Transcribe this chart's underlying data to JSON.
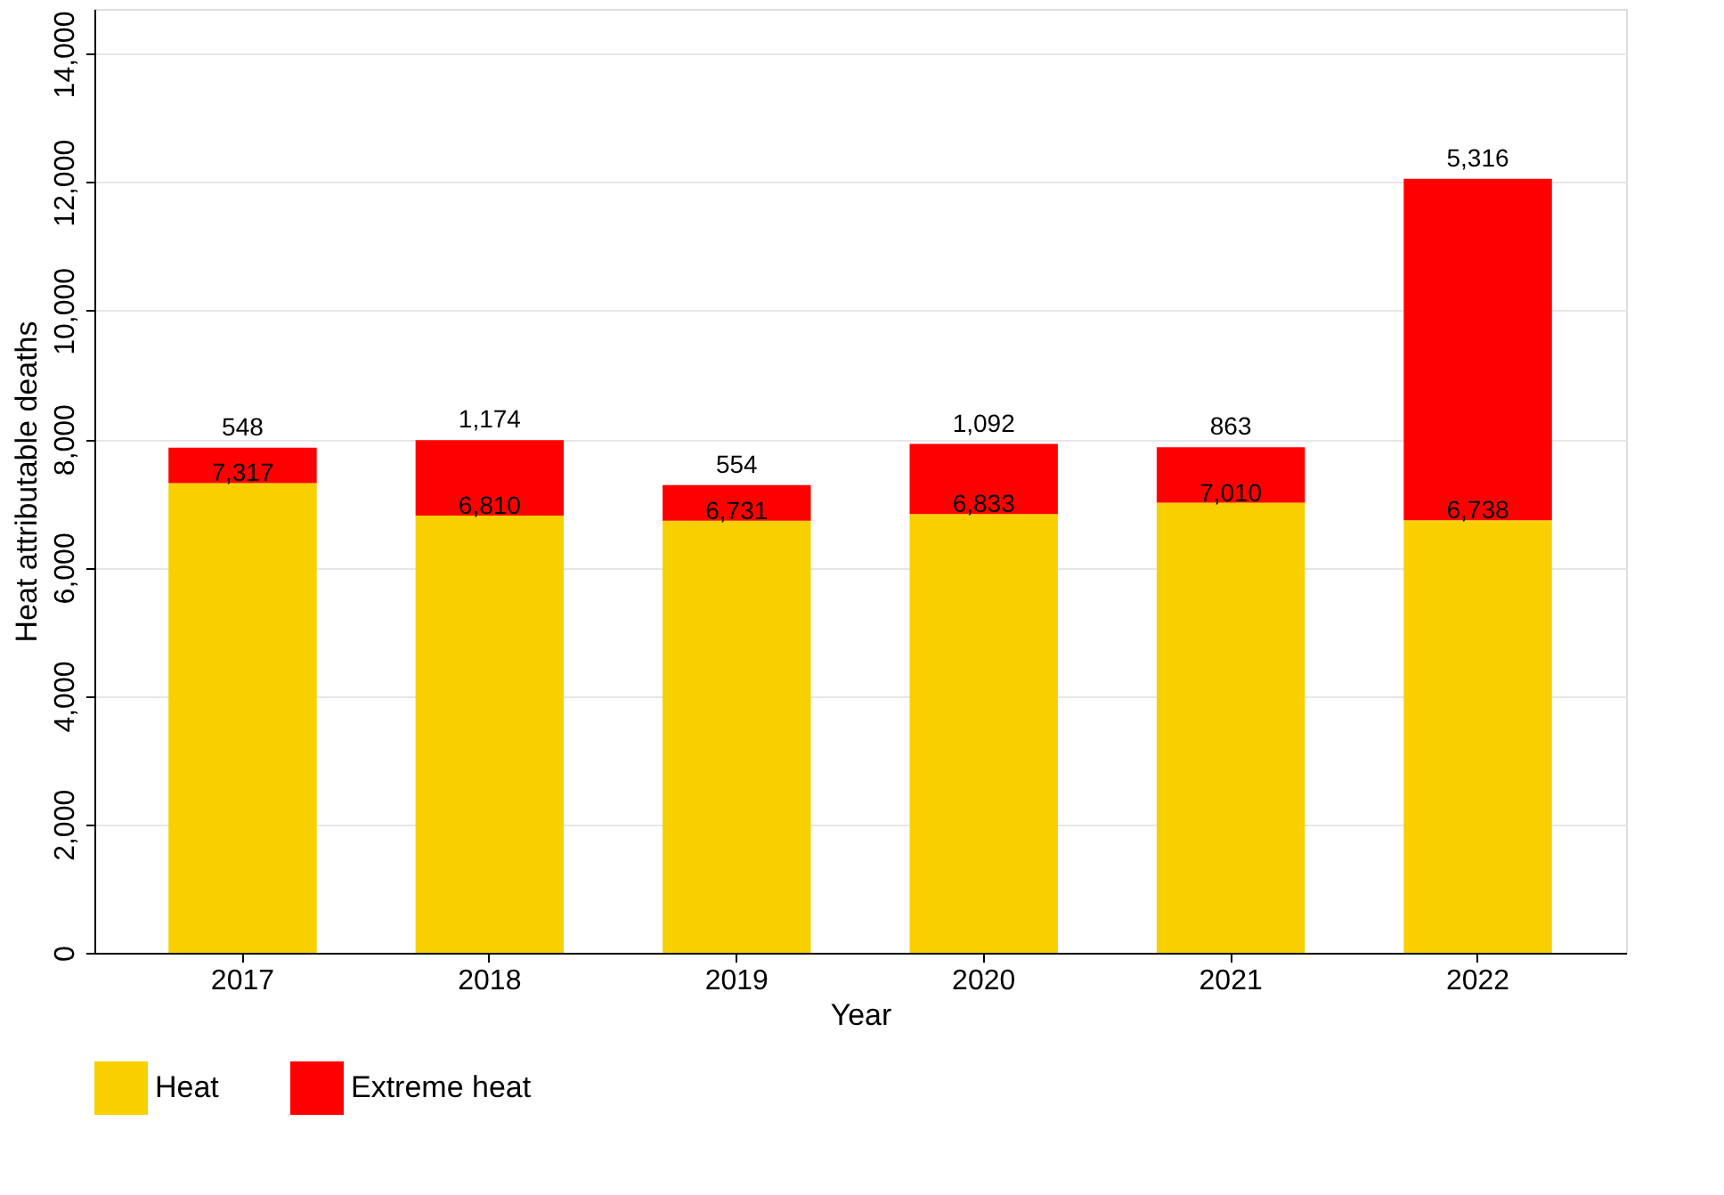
{
  "chart_data": {
    "type": "bar",
    "stacked": true,
    "xlabel": "Year",
    "ylabel": "Heat attributable deaths",
    "categories": [
      "2017",
      "2018",
      "2019",
      "2020",
      "2021",
      "2022"
    ],
    "series": [
      {
        "name": "Heat",
        "color": "#f8d000",
        "values": [
          7317,
          6810,
          6731,
          6833,
          7010,
          6738
        ],
        "value_labels": [
          "7,317",
          "6,810",
          "6,731",
          "6,833",
          "7,010",
          "6,738"
        ]
      },
      {
        "name": "Extreme heat",
        "color": "#ff0000",
        "values": [
          548,
          1174,
          554,
          1092,
          863,
          5316
        ],
        "value_labels": [
          "548",
          "1,174",
          "554",
          "1,092",
          "863",
          "5,316"
        ]
      }
    ],
    "ylim": [
      0,
      14700
    ],
    "yticks": [
      0,
      {
        "value": 2000,
        "label": "2,000"
      },
      {
        "value": 4000,
        "label": "4,000"
      },
      {
        "value": 6000,
        "label": "6,000"
      },
      {
        "value": 8000,
        "label": "8,000"
      },
      {
        "value": 10000,
        "label": "10,000"
      },
      {
        "value": 12000,
        "label": "12,000"
      },
      {
        "value": 14000,
        "label": "14,000"
      }
    ],
    "grid": "y",
    "legend": "bottom"
  }
}
